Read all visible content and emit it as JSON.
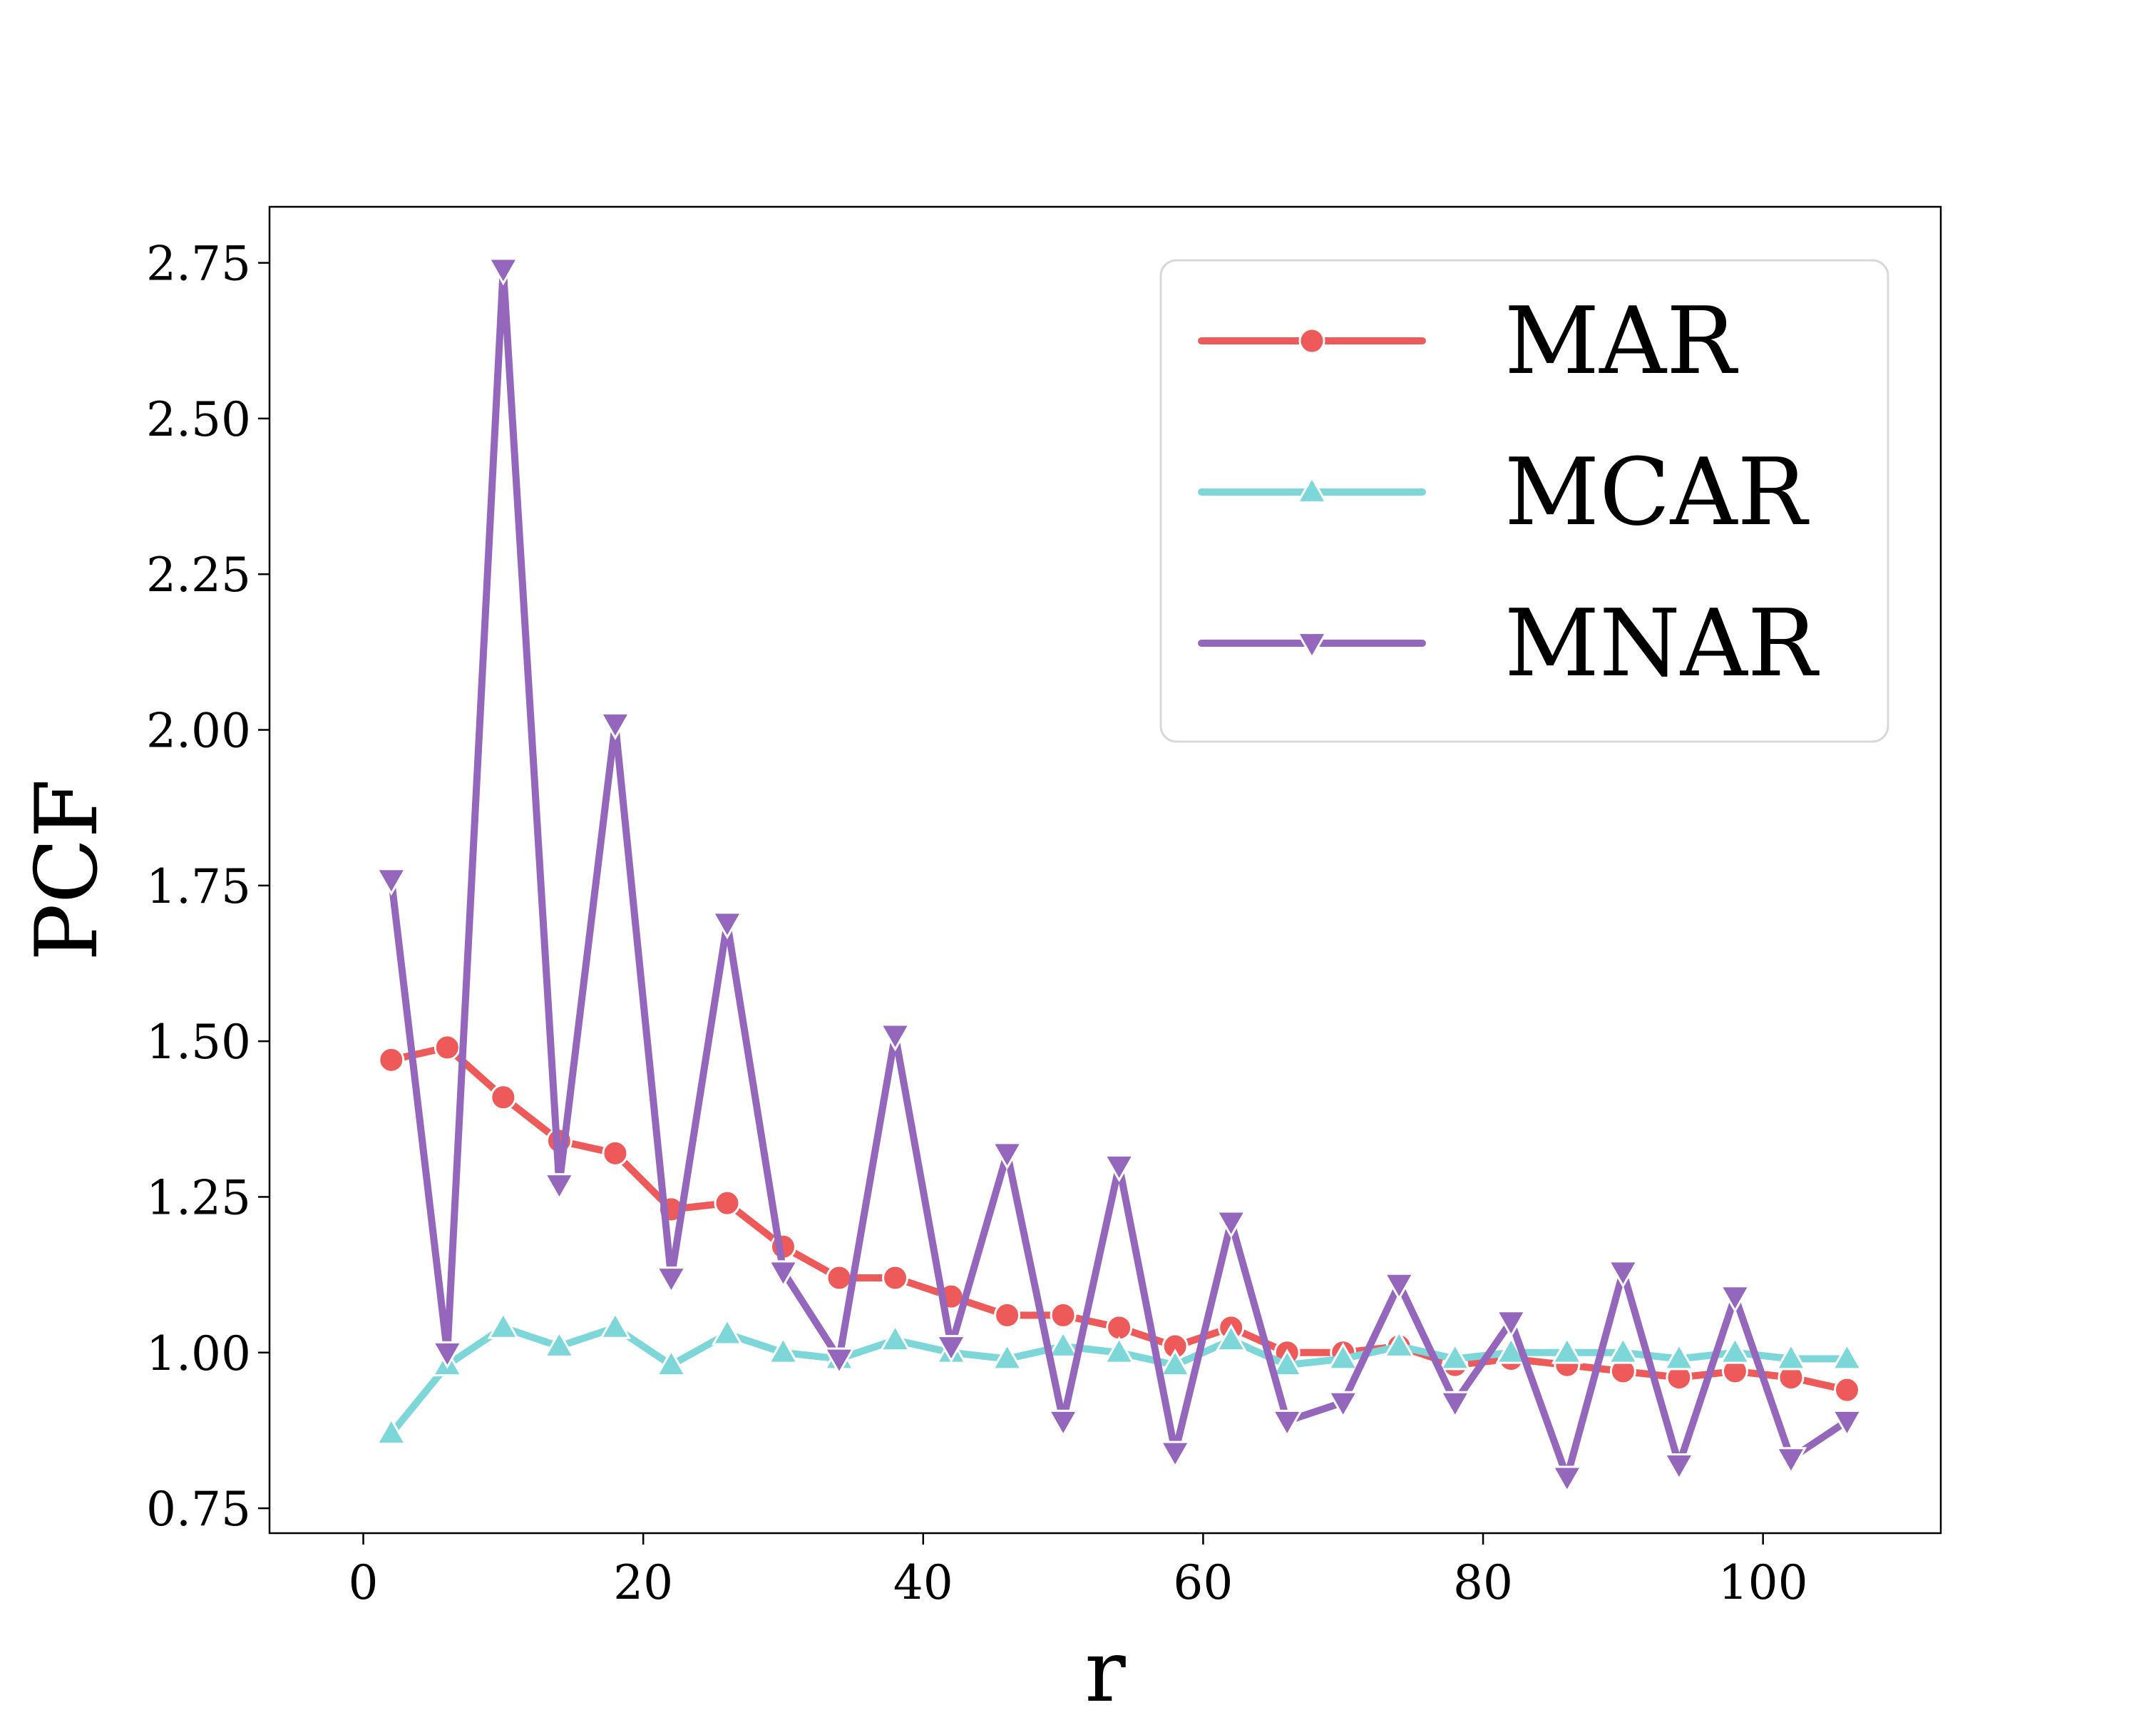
{
  "chart_data": {
    "type": "line",
    "title": "",
    "xlabel": "r",
    "ylabel": "PCF",
    "xlim": [
      -6.7,
      112.7
    ],
    "ylim": [
      0.71,
      2.84
    ],
    "xticks": [
      0,
      20,
      40,
      60,
      80,
      100
    ],
    "xtick_labels": [
      "0",
      "20",
      "40",
      "60",
      "80",
      "100"
    ],
    "yticks": [
      0.75,
      1.0,
      1.25,
      1.5,
      1.75,
      2.0,
      2.25,
      2.5,
      2.75
    ],
    "ytick_labels": [
      "0.75",
      "1.00",
      "1.25",
      "1.50",
      "1.75",
      "2.00",
      "2.25",
      "2.50",
      "2.75"
    ],
    "grid": false,
    "legend_position": "top-right",
    "x": [
      2,
      6,
      10,
      14,
      18,
      22,
      26,
      30,
      34,
      38,
      42,
      46,
      50,
      54,
      58,
      62,
      66,
      70,
      74,
      78,
      82,
      86,
      90,
      94,
      98,
      102,
      106
    ],
    "series": [
      {
        "name": "MAR",
        "color": "#EE5A5A",
        "marker": "circle",
        "values": [
          1.47,
          1.49,
          1.41,
          1.34,
          1.32,
          1.23,
          1.24,
          1.17,
          1.12,
          1.12,
          1.09,
          1.06,
          1.06,
          1.04,
          1.01,
          1.04,
          1.0,
          1.0,
          1.01,
          0.98,
          0.99,
          0.98,
          0.97,
          0.96,
          0.97,
          0.96,
          0.94
        ]
      },
      {
        "name": "MCAR",
        "color": "#7DD6D8",
        "marker": "triangle-up",
        "values": [
          0.87,
          0.98,
          1.04,
          1.01,
          1.04,
          0.98,
          1.03,
          1.0,
          0.99,
          1.02,
          1.0,
          0.99,
          1.01,
          1.0,
          0.98,
          1.02,
          0.98,
          0.99,
          1.01,
          0.99,
          1.0,
          1.0,
          1.0,
          0.99,
          1.0,
          0.99,
          0.99
        ]
      },
      {
        "name": "MNAR",
        "color": "#9467BD",
        "marker": "triangle-down",
        "values": [
          1.76,
          1.0,
          2.74,
          1.27,
          2.01,
          1.12,
          1.69,
          1.13,
          0.99,
          1.51,
          1.01,
          1.32,
          0.89,
          1.3,
          0.84,
          1.21,
          0.89,
          0.92,
          1.11,
          0.92,
          1.05,
          0.8,
          1.13,
          0.82,
          1.09,
          0.83,
          0.89
        ]
      }
    ]
  }
}
